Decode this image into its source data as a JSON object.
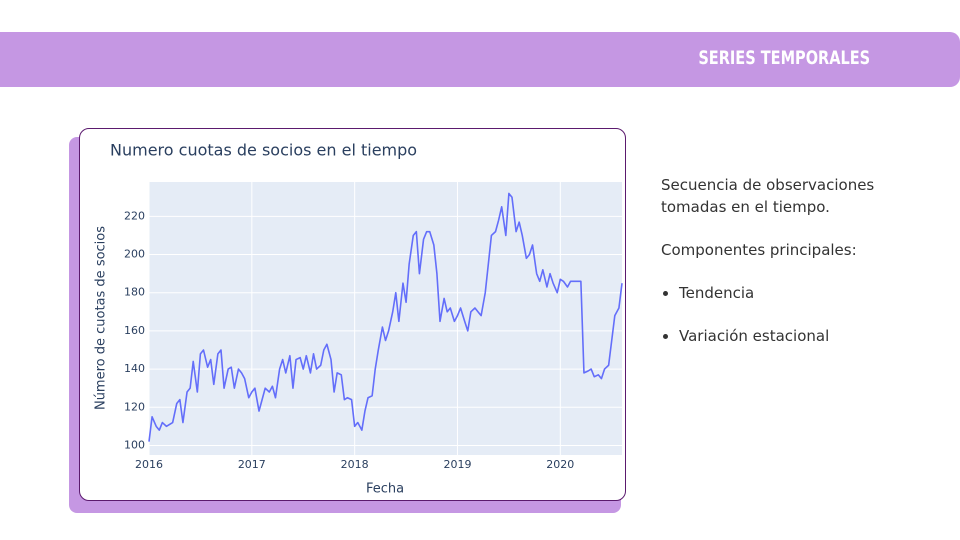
{
  "header": {
    "title": "SERIES TEMPORALES"
  },
  "chart_data": {
    "type": "line",
    "title": "Numero cuotas de socios en el tiempo",
    "x_label": "Fecha",
    "y_label": "Número de cuotas de socios",
    "series": [
      {
        "color": "#636efa",
        "x": [
          2016.0,
          2016.03,
          2016.07,
          2016.1,
          2016.13,
          2016.17,
          2016.2,
          2016.23,
          2016.27,
          2016.3,
          2016.33,
          2016.37,
          2016.4,
          2016.43,
          2016.47,
          2016.5,
          2016.53,
          2016.57,
          2016.6,
          2016.63,
          2016.67,
          2016.7,
          2016.73,
          2016.77,
          2016.8,
          2016.83,
          2016.87,
          2016.9,
          2016.93,
          2016.97,
          2017.0,
          2017.03,
          2017.07,
          2017.1,
          2017.13,
          2017.17,
          2017.2,
          2017.23,
          2017.27,
          2017.3,
          2017.33,
          2017.37,
          2017.4,
          2017.43,
          2017.47,
          2017.5,
          2017.53,
          2017.57,
          2017.6,
          2017.63,
          2017.67,
          2017.7,
          2017.73,
          2017.77,
          2017.8,
          2017.83,
          2017.87,
          2017.9,
          2017.93,
          2017.97,
          2018.0,
          2018.03,
          2018.07,
          2018.1,
          2018.13,
          2018.17,
          2018.2,
          2018.23,
          2018.27,
          2018.3,
          2018.33,
          2018.37,
          2018.4,
          2018.43,
          2018.47,
          2018.5,
          2018.53,
          2018.57,
          2018.6,
          2018.63,
          2018.67,
          2018.7,
          2018.73,
          2018.77,
          2018.8,
          2018.83,
          2018.87,
          2018.9,
          2018.93,
          2018.97,
          2019.0,
          2019.03,
          2019.07,
          2019.1,
          2019.13,
          2019.17,
          2019.2,
          2019.23,
          2019.27,
          2019.3,
          2019.33,
          2019.37,
          2019.4,
          2019.43,
          2019.47,
          2019.5,
          2019.53,
          2019.57,
          2019.6,
          2019.63,
          2019.67,
          2019.7,
          2019.73,
          2019.77,
          2019.8,
          2019.83,
          2019.87,
          2019.9,
          2019.93,
          2019.97,
          2020.0,
          2020.03,
          2020.07,
          2020.1,
          2020.13,
          2020.17,
          2020.2,
          2020.23,
          2020.27,
          2020.3,
          2020.33,
          2020.37,
          2020.4,
          2020.43,
          2020.47,
          2020.5,
          2020.53,
          2020.57,
          2020.6
        ],
        "values": [
          102,
          115,
          110,
          108,
          112,
          110,
          111,
          112,
          122,
          124,
          112,
          128,
          130,
          144,
          128,
          148,
          150,
          141,
          145,
          132,
          148,
          150,
          130,
          140,
          141,
          130,
          140,
          138,
          135,
          125,
          128,
          130,
          118,
          124,
          130,
          128,
          131,
          125,
          140,
          145,
          138,
          147,
          130,
          145,
          146,
          140,
          147,
          138,
          148,
          140,
          142,
          150,
          153,
          145,
          128,
          138,
          137,
          124,
          125,
          124,
          110,
          112,
          108,
          118,
          125,
          126,
          140,
          150,
          162,
          155,
          160,
          170,
          180,
          165,
          185,
          175,
          195,
          210,
          212,
          190,
          208,
          212,
          212,
          205,
          190,
          165,
          177,
          170,
          172,
          165,
          168,
          172,
          165,
          160,
          170,
          172,
          170,
          168,
          180,
          195,
          210,
          212,
          218,
          225,
          210,
          232,
          230,
          212,
          217,
          210,
          198,
          200,
          205,
          190,
          186,
          192,
          183,
          190,
          185,
          180,
          187,
          186,
          183,
          186,
          186,
          186,
          186,
          138,
          139,
          140,
          136,
          137,
          135,
          140,
          142,
          155,
          168,
          172,
          185
        ]
      }
    ],
    "xlim": [
      2016,
      2020.6
    ],
    "xticks": [
      2016,
      2017,
      2018,
      2019,
      2020
    ],
    "ylim": [
      95,
      238
    ],
    "yticks": [
      100,
      120,
      140,
      160,
      180,
      200,
      220
    ],
    "grid": true
  },
  "text": {
    "paragraph": "Secuencia de observaciones tomadas en el tiempo.",
    "subheading": "Componentes principales:",
    "bullets": [
      "Tendencia",
      "Variación estacional"
    ]
  }
}
